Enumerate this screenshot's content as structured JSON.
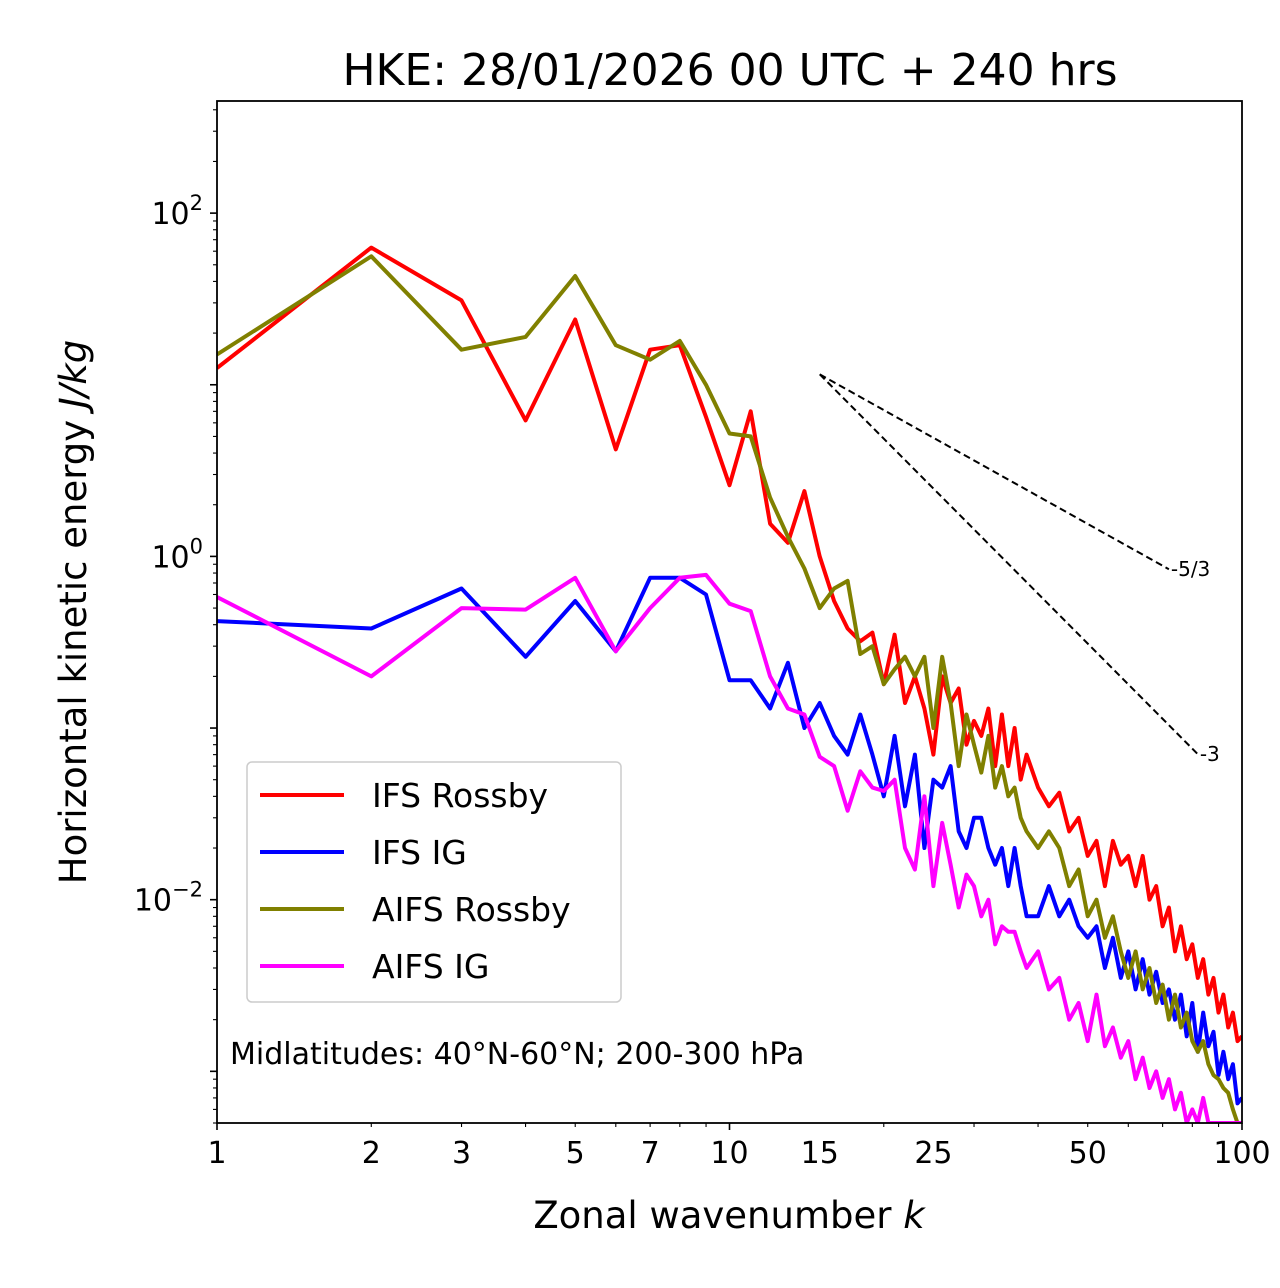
{
  "chart_data": {
    "type": "line",
    "scale": {
      "x": "log",
      "y": "log"
    },
    "title": "HKE: 28/01/2026 00 UTC + 240 hrs",
    "xlabel": "Zonal wavenumber",
    "xlabel_var": "k",
    "ylabel": "Horizontal kinetic energy",
    "ylabel_unit": "J/kg",
    "xlim": [
      1,
      100
    ],
    "ylim": [
      0.0005,
      450
    ],
    "x_ticks": [
      1,
      2,
      3,
      5,
      7,
      10,
      15,
      25,
      50,
      100
    ],
    "x_tick_labels": [
      "1",
      "2",
      "3",
      "5",
      "7",
      "10",
      "15",
      "25",
      "50",
      "100"
    ],
    "y_ticks": [
      0.01,
      1,
      100
    ],
    "y_tick_labels": [
      {
        "base": "10",
        "exp": "−2"
      },
      {
        "base": "10",
        "exp": "0"
      },
      {
        "base": "10",
        "exp": "2"
      }
    ],
    "legend_position": "lower-left",
    "annotation": "Midlatitudes: 40°N-60°N; 200-300 hPa",
    "reference_lines": [
      {
        "label": "-5/3",
        "slope": -1.6667,
        "x": [
          15,
          72
        ],
        "y_start": 11.5
      },
      {
        "label": "-3",
        "slope": -3,
        "x": [
          15,
          82
        ],
        "y_start": 11.5
      }
    ],
    "series": [
      {
        "name": "IFS Rossby",
        "color": "#ff0000",
        "x": [
          1,
          2,
          3,
          4,
          5,
          6,
          7,
          8,
          9,
          10,
          11,
          12,
          13,
          14,
          15,
          16,
          17,
          18,
          19,
          20,
          21,
          22,
          23,
          24,
          25,
          26,
          27,
          28,
          29,
          30,
          31,
          32,
          33,
          34,
          35,
          36,
          37,
          38,
          40,
          42,
          44,
          46,
          48,
          50,
          52,
          54,
          56,
          58,
          60,
          62,
          64,
          66,
          68,
          70,
          72,
          74,
          76,
          78,
          80,
          82,
          84,
          86,
          88,
          90,
          92,
          94,
          96,
          98,
          100
        ],
        "values": [
          12.5,
          63,
          31,
          6.2,
          24,
          4.2,
          16,
          17,
          6.5,
          2.6,
          7,
          1.55,
          1.2,
          2.4,
          1.0,
          0.55,
          0.38,
          0.32,
          0.36,
          0.18,
          0.35,
          0.14,
          0.2,
          0.13,
          0.07,
          0.2,
          0.14,
          0.17,
          0.08,
          0.11,
          0.09,
          0.13,
          0.06,
          0.12,
          0.06,
          0.1,
          0.05,
          0.07,
          0.045,
          0.035,
          0.042,
          0.025,
          0.03,
          0.018,
          0.022,
          0.012,
          0.022,
          0.016,
          0.018,
          0.012,
          0.018,
          0.01,
          0.012,
          0.007,
          0.009,
          0.005,
          0.007,
          0.0045,
          0.0055,
          0.0035,
          0.0045,
          0.0028,
          0.0035,
          0.0022,
          0.0028,
          0.0018,
          0.0022,
          0.0015,
          0.0016
        ]
      },
      {
        "name": "IFS IG",
        "color": "#0000ff",
        "x": [
          1,
          2,
          3,
          4,
          5,
          6,
          7,
          8,
          9,
          10,
          11,
          12,
          13,
          14,
          15,
          16,
          17,
          18,
          19,
          20,
          21,
          22,
          23,
          24,
          25,
          26,
          27,
          28,
          29,
          30,
          31,
          32,
          33,
          34,
          35,
          36,
          37,
          38,
          40,
          42,
          44,
          46,
          48,
          50,
          52,
          54,
          56,
          58,
          60,
          62,
          64,
          66,
          68,
          70,
          72,
          74,
          76,
          78,
          80,
          82,
          84,
          86,
          88,
          90,
          92,
          94,
          96,
          98,
          100
        ],
        "values": [
          0.42,
          0.38,
          0.65,
          0.26,
          0.55,
          0.28,
          0.75,
          0.75,
          0.6,
          0.19,
          0.19,
          0.13,
          0.24,
          0.1,
          0.14,
          0.09,
          0.07,
          0.12,
          0.07,
          0.04,
          0.09,
          0.035,
          0.07,
          0.02,
          0.05,
          0.045,
          0.06,
          0.025,
          0.02,
          0.03,
          0.03,
          0.02,
          0.016,
          0.02,
          0.012,
          0.02,
          0.012,
          0.008,
          0.008,
          0.012,
          0.008,
          0.01,
          0.007,
          0.006,
          0.007,
          0.004,
          0.006,
          0.0035,
          0.005,
          0.003,
          0.0045,
          0.0028,
          0.0038,
          0.0025,
          0.003,
          0.002,
          0.0028,
          0.0016,
          0.0025,
          0.0013,
          0.0022,
          0.0014,
          0.0017,
          0.00095,
          0.0013,
          0.0009,
          0.0011,
          0.00065,
          0.0007
        ]
      },
      {
        "name": "AIFS Rossby",
        "color": "#808000",
        "x": [
          1,
          2,
          3,
          4,
          5,
          6,
          7,
          8,
          9,
          10,
          11,
          12,
          13,
          14,
          15,
          16,
          17,
          18,
          19,
          20,
          21,
          22,
          23,
          24,
          25,
          26,
          27,
          28,
          29,
          30,
          31,
          32,
          33,
          34,
          35,
          36,
          37,
          38,
          40,
          42,
          44,
          46,
          48,
          50,
          52,
          54,
          56,
          58,
          60,
          62,
          64,
          66,
          68,
          70,
          72,
          74,
          76,
          78,
          80,
          82,
          84,
          86,
          88,
          90,
          92,
          94,
          96,
          98,
          100
        ],
        "values": [
          15,
          56,
          16,
          19,
          43,
          17,
          14,
          18,
          10,
          5.2,
          5.0,
          2.2,
          1.3,
          0.85,
          0.5,
          0.65,
          0.72,
          0.27,
          0.3,
          0.18,
          0.22,
          0.26,
          0.2,
          0.26,
          0.1,
          0.26,
          0.14,
          0.06,
          0.12,
          0.08,
          0.055,
          0.09,
          0.045,
          0.06,
          0.04,
          0.045,
          0.03,
          0.025,
          0.02,
          0.025,
          0.02,
          0.012,
          0.015,
          0.008,
          0.01,
          0.006,
          0.008,
          0.005,
          0.0035,
          0.005,
          0.003,
          0.004,
          0.0025,
          0.0032,
          0.002,
          0.0028,
          0.0018,
          0.0022,
          0.0015,
          0.0013,
          0.0015,
          0.0011,
          0.00095,
          0.0009,
          0.0008,
          0.00075,
          0.0006,
          0.0005,
          0.0005
        ]
      },
      {
        "name": "AIFS IG",
        "color": "#ff00ff",
        "x": [
          1,
          2,
          3,
          4,
          5,
          6,
          7,
          8,
          9,
          10,
          11,
          12,
          13,
          14,
          15,
          16,
          17,
          18,
          19,
          20,
          21,
          22,
          23,
          24,
          25,
          26,
          27,
          28,
          29,
          30,
          31,
          32,
          33,
          34,
          35,
          36,
          37,
          38,
          40,
          42,
          44,
          46,
          48,
          50,
          52,
          54,
          56,
          58,
          60,
          62,
          64,
          66,
          68,
          70,
          72,
          74,
          76,
          78,
          80,
          82,
          84,
          86,
          88,
          90,
          92,
          94,
          96,
          98,
          100
        ],
        "values": [
          0.58,
          0.2,
          0.5,
          0.49,
          0.75,
          0.28,
          0.5,
          0.75,
          0.78,
          0.53,
          0.48,
          0.2,
          0.13,
          0.12,
          0.068,
          0.06,
          0.033,
          0.056,
          0.045,
          0.043,
          0.05,
          0.02,
          0.015,
          0.04,
          0.012,
          0.028,
          0.016,
          0.009,
          0.014,
          0.012,
          0.008,
          0.01,
          0.0055,
          0.007,
          0.0065,
          0.0065,
          0.005,
          0.004,
          0.005,
          0.003,
          0.0035,
          0.002,
          0.0025,
          0.0015,
          0.0028,
          0.0014,
          0.0018,
          0.0012,
          0.0015,
          0.0009,
          0.0012,
          0.0008,
          0.001,
          0.0007,
          0.0009,
          0.0006,
          0.00075,
          0.0005,
          0.0006,
          0.0005,
          0.0007,
          0.0005,
          0.0005,
          0.0005,
          0.0005,
          0.0005,
          0.0005,
          0.0005,
          0.0005
        ]
      }
    ]
  }
}
